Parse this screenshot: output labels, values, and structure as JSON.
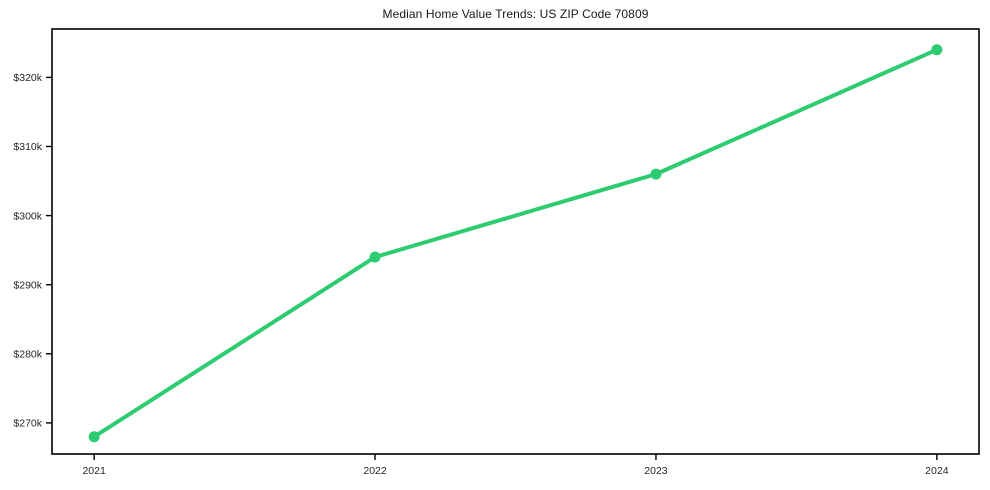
{
  "page": {
    "background": "#ffffff"
  },
  "chart_data": {
    "type": "line",
    "title": "Median Home Value Trends: US ZIP Code 70809",
    "x": [
      2021,
      2022,
      2023,
      2024
    ],
    "series": [
      {
        "name": "Median Home Value",
        "values": [
          268000,
          294000,
          306000,
          324000
        ]
      }
    ],
    "xlabel": "",
    "ylabel": "",
    "xlim": [
      2020.85,
      2024.15
    ],
    "ylim": [
      265500,
      327000
    ],
    "xticks": [
      {
        "value": 2021,
        "label": "2021"
      },
      {
        "value": 2022,
        "label": "2022"
      },
      {
        "value": 2023,
        "label": "2023"
      },
      {
        "value": 2024,
        "label": "2024"
      }
    ],
    "yticks": [
      {
        "value": 270000,
        "label": "$270k"
      },
      {
        "value": 280000,
        "label": "$280k"
      },
      {
        "value": 290000,
        "label": "$290k"
      },
      {
        "value": 300000,
        "label": "$300k"
      },
      {
        "value": 310000,
        "label": "$310k"
      },
      {
        "value": 320000,
        "label": "$320k"
      }
    ],
    "grid": false,
    "legend_position": "none",
    "line_color": "#2ecc71",
    "marker": "circle",
    "axis_color": "#000000",
    "tick_label_color": "#262626"
  }
}
